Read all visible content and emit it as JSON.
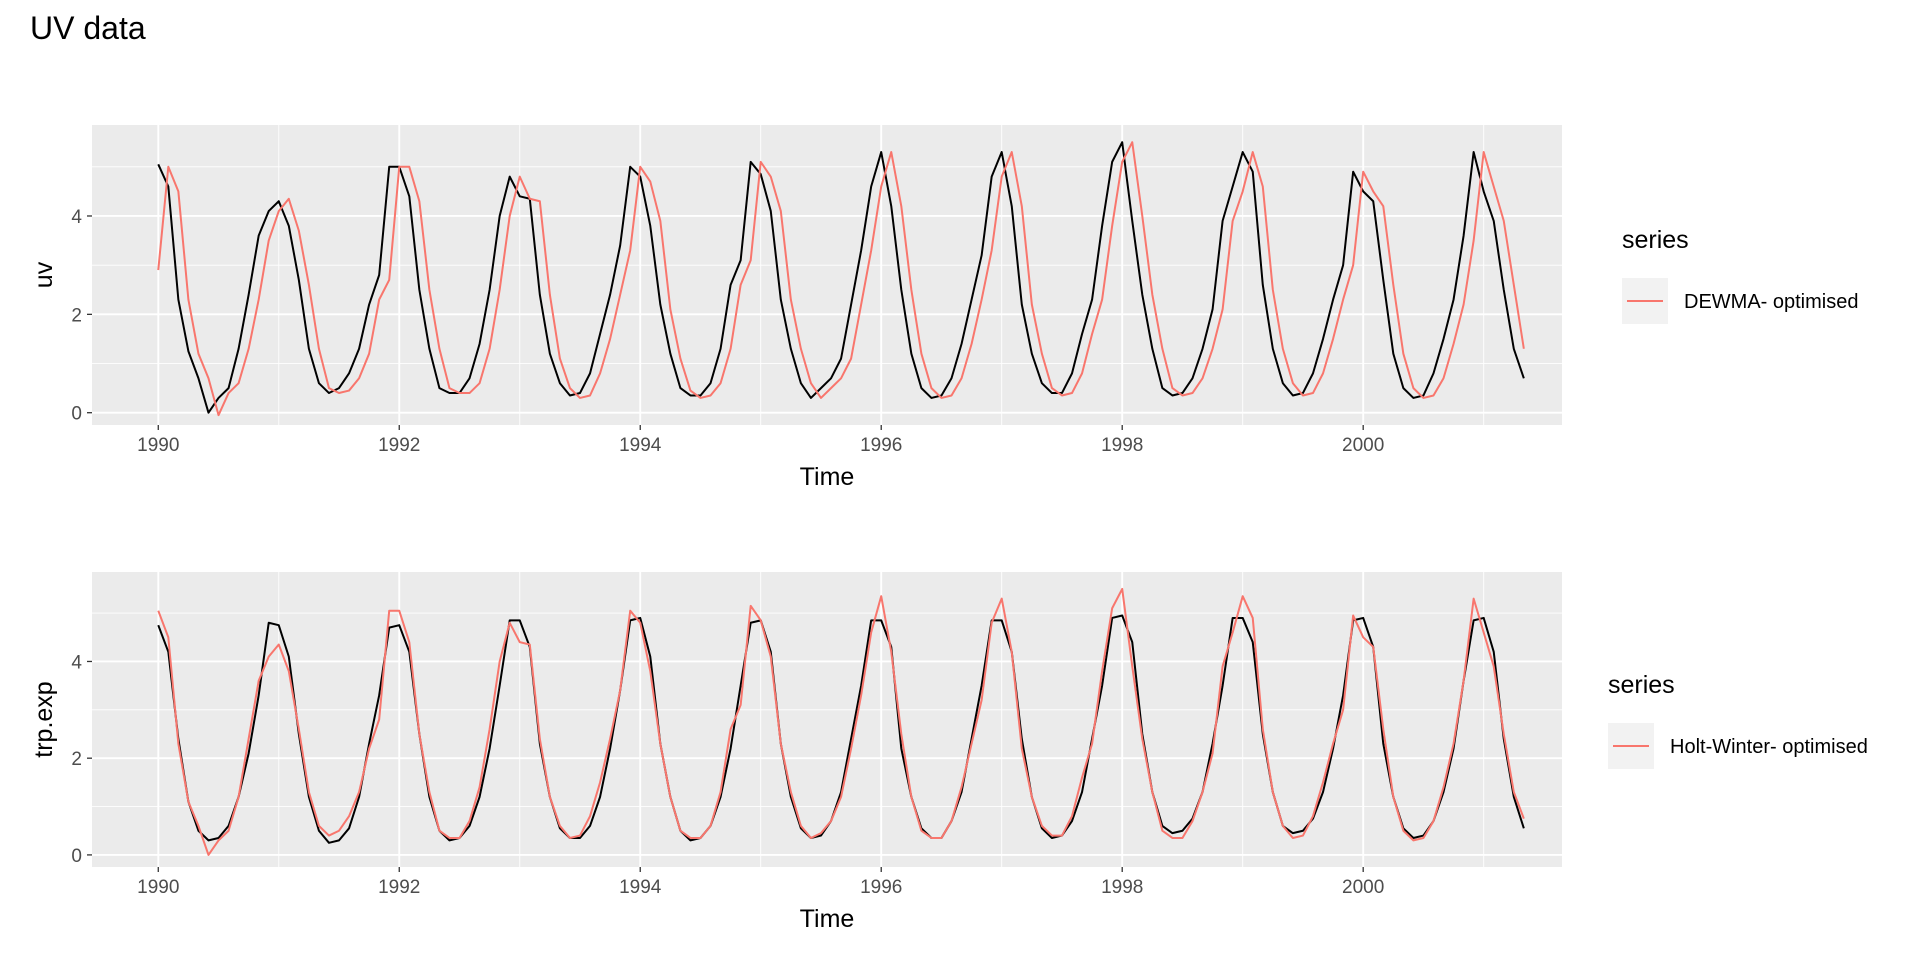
{
  "title": "UV data",
  "colors": {
    "panel_bg": "#EBEBEB",
    "grid": "#FFFFFF",
    "actual_line": "#000000",
    "fitted_line": "#F8766D",
    "axis_text": "#4D4D4D",
    "legend_key_bg": "#F2F2F2"
  },
  "chart_data": [
    {
      "type": "line",
      "xlabel": "Time",
      "ylabel": "uv",
      "xlim": [
        1989.45,
        2001.65
      ],
      "ylim": [
        -0.25,
        5.85
      ],
      "x_ticks": [
        1990,
        1992,
        1994,
        1996,
        1998,
        2000
      ],
      "y_ticks": [
        0,
        2,
        4
      ],
      "grid": true,
      "legend": {
        "title": "series",
        "position": "right",
        "entries": [
          "DEWMA- optimised"
        ]
      },
      "x_start": 1990,
      "x_step": 0.08333333,
      "series": [
        {
          "role": "actual",
          "values": [
            5.05,
            4.6,
            2.3,
            1.25,
            0.7,
            0.0,
            0.3,
            0.5,
            1.3,
            2.4,
            3.6,
            4.1,
            4.3,
            3.8,
            2.7,
            1.3,
            0.6,
            0.4,
            0.5,
            0.8,
            1.3,
            2.2,
            2.8,
            5.0,
            5.0,
            4.4,
            2.5,
            1.3,
            0.5,
            0.4,
            0.4,
            0.7,
            1.4,
            2.5,
            4.0,
            4.8,
            4.4,
            4.35,
            2.4,
            1.2,
            0.6,
            0.35,
            0.4,
            0.8,
            1.6,
            2.4,
            3.4,
            5.0,
            4.8,
            3.8,
            2.2,
            1.2,
            0.5,
            0.35,
            0.35,
            0.6,
            1.3,
            2.6,
            3.1,
            5.1,
            4.85,
            4.1,
            2.3,
            1.3,
            0.6,
            0.3,
            0.5,
            0.7,
            1.1,
            2.2,
            3.3,
            4.6,
            5.3,
            4.2,
            2.5,
            1.2,
            0.5,
            0.3,
            0.35,
            0.7,
            1.4,
            2.3,
            3.2,
            4.8,
            5.3,
            4.2,
            2.2,
            1.2,
            0.6,
            0.4,
            0.4,
            0.8,
            1.6,
            2.3,
            3.8,
            5.1,
            5.5,
            3.9,
            2.4,
            1.3,
            0.5,
            0.35,
            0.4,
            0.7,
            1.3,
            2.1,
            3.9,
            4.6,
            5.3,
            4.9,
            2.6,
            1.3,
            0.6,
            0.35,
            0.4,
            0.8,
            1.5,
            2.3,
            3.0,
            4.9,
            4.5,
            4.3,
            2.7,
            1.2,
            0.5,
            0.3,
            0.35,
            0.8,
            1.5,
            2.3,
            3.6,
            5.3,
            4.5,
            3.9,
            2.5,
            1.3,
            0.7
          ]
        },
        {
          "role": "fitted",
          "name": "DEWMA- optimised",
          "values": [
            2.9,
            5.0,
            4.5,
            2.3,
            1.2,
            0.7,
            -0.05,
            0.4,
            0.6,
            1.3,
            2.3,
            3.5,
            4.1,
            4.35,
            3.7,
            2.6,
            1.3,
            0.5,
            0.4,
            0.45,
            0.7,
            1.2,
            2.3,
            2.7,
            5.0,
            5.0,
            4.3,
            2.5,
            1.3,
            0.5,
            0.4,
            0.4,
            0.6,
            1.3,
            2.5,
            4.0,
            4.8,
            4.35,
            4.3,
            2.4,
            1.1,
            0.5,
            0.3,
            0.35,
            0.8,
            1.5,
            2.4,
            3.3,
            5.0,
            4.7,
            3.9,
            2.1,
            1.1,
            0.45,
            0.3,
            0.35,
            0.6,
            1.3,
            2.6,
            3.1,
            5.1,
            4.8,
            4.1,
            2.3,
            1.3,
            0.6,
            0.3,
            0.5,
            0.7,
            1.1,
            2.2,
            3.3,
            4.6,
            5.3,
            4.2,
            2.5,
            1.2,
            0.5,
            0.3,
            0.35,
            0.7,
            1.4,
            2.3,
            3.3,
            4.8,
            5.3,
            4.2,
            2.2,
            1.2,
            0.5,
            0.35,
            0.4,
            0.8,
            1.6,
            2.3,
            3.8,
            5.1,
            5.5,
            4.0,
            2.4,
            1.3,
            0.5,
            0.35,
            0.4,
            0.7,
            1.3,
            2.1,
            3.9,
            4.5,
            5.3,
            4.6,
            2.5,
            1.3,
            0.6,
            0.35,
            0.4,
            0.8,
            1.5,
            2.3,
            3.0,
            4.9,
            4.5,
            4.2,
            2.6,
            1.2,
            0.5,
            0.3,
            0.35,
            0.7,
            1.4,
            2.2,
            3.5,
            5.3,
            4.6,
            3.9,
            2.6,
            1.3
          ]
        }
      ]
    },
    {
      "type": "line",
      "xlabel": "Time",
      "ylabel": "trp.exp",
      "xlim": [
        1989.45,
        2001.65
      ],
      "ylim": [
        -0.25,
        5.85
      ],
      "x_ticks": [
        1990,
        1992,
        1994,
        1996,
        1998,
        2000
      ],
      "y_ticks": [
        0,
        2,
        4
      ],
      "grid": true,
      "legend": {
        "title": "series",
        "position": "right",
        "entries": [
          "Holt-Winter- optimised"
        ]
      },
      "x_start": 1990,
      "x_step": 0.08333333,
      "series": [
        {
          "role": "actual",
          "values": [
            4.75,
            4.2,
            2.4,
            1.1,
            0.5,
            0.3,
            0.35,
            0.6,
            1.2,
            2.1,
            3.3,
            4.8,
            4.75,
            4.1,
            2.5,
            1.2,
            0.5,
            0.25,
            0.3,
            0.55,
            1.2,
            2.3,
            3.3,
            4.7,
            4.75,
            4.2,
            2.5,
            1.2,
            0.5,
            0.3,
            0.35,
            0.6,
            1.2,
            2.2,
            3.5,
            4.85,
            4.85,
            4.3,
            2.3,
            1.2,
            0.55,
            0.35,
            0.35,
            0.6,
            1.2,
            2.2,
            3.4,
            4.85,
            4.9,
            4.1,
            2.3,
            1.2,
            0.5,
            0.3,
            0.35,
            0.6,
            1.2,
            2.2,
            3.5,
            4.8,
            4.85,
            4.2,
            2.3,
            1.2,
            0.55,
            0.35,
            0.4,
            0.7,
            1.3,
            2.4,
            3.5,
            4.85,
            4.85,
            4.3,
            2.2,
            1.2,
            0.55,
            0.35,
            0.35,
            0.7,
            1.3,
            2.4,
            3.5,
            4.85,
            4.85,
            4.2,
            2.4,
            1.2,
            0.55,
            0.35,
            0.4,
            0.7,
            1.3,
            2.4,
            3.5,
            4.9,
            4.95,
            4.4,
            2.5,
            1.3,
            0.6,
            0.45,
            0.5,
            0.75,
            1.3,
            2.3,
            3.5,
            4.9,
            4.9,
            4.4,
            2.5,
            1.3,
            0.6,
            0.45,
            0.5,
            0.75,
            1.3,
            2.2,
            3.3,
            4.85,
            4.9,
            4.3,
            2.3,
            1.2,
            0.55,
            0.35,
            0.4,
            0.7,
            1.3,
            2.2,
            3.6,
            4.85,
            4.9,
            4.2,
            2.4,
            1.2,
            0.55
          ]
        },
        {
          "role": "fitted",
          "name": "Holt-Winter- optimised",
          "values": [
            5.05,
            4.5,
            2.3,
            1.1,
            0.6,
            0.0,
            0.3,
            0.5,
            1.2,
            2.4,
            3.6,
            4.1,
            4.35,
            3.8,
            2.6,
            1.3,
            0.6,
            0.4,
            0.5,
            0.8,
            1.3,
            2.2,
            2.8,
            5.05,
            5.05,
            4.4,
            2.5,
            1.3,
            0.5,
            0.35,
            0.35,
            0.7,
            1.4,
            2.6,
            4.0,
            4.8,
            4.4,
            4.35,
            2.4,
            1.2,
            0.6,
            0.35,
            0.4,
            0.8,
            1.5,
            2.4,
            3.4,
            5.05,
            4.8,
            3.8,
            2.3,
            1.2,
            0.5,
            0.35,
            0.35,
            0.6,
            1.3,
            2.6,
            3.1,
            5.15,
            4.85,
            4.1,
            2.3,
            1.3,
            0.6,
            0.35,
            0.45,
            0.7,
            1.2,
            2.2,
            3.3,
            4.6,
            5.35,
            4.2,
            2.5,
            1.2,
            0.5,
            0.35,
            0.35,
            0.7,
            1.4,
            2.3,
            3.2,
            4.8,
            5.3,
            4.2,
            2.2,
            1.2,
            0.6,
            0.4,
            0.4,
            0.8,
            1.6,
            2.3,
            3.8,
            5.1,
            5.5,
            3.9,
            2.4,
            1.3,
            0.5,
            0.35,
            0.35,
            0.7,
            1.3,
            2.1,
            3.9,
            4.6,
            5.35,
            4.9,
            2.6,
            1.3,
            0.6,
            0.35,
            0.4,
            0.8,
            1.5,
            2.3,
            3.0,
            4.95,
            4.5,
            4.3,
            2.6,
            1.2,
            0.5,
            0.3,
            0.35,
            0.7,
            1.4,
            2.3,
            3.6,
            5.3,
            4.6,
            3.9,
            2.5,
            1.3,
            0.75
          ]
        }
      ]
    }
  ]
}
